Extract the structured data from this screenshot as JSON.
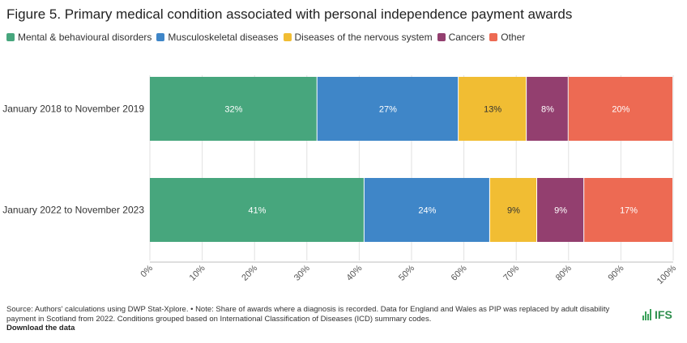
{
  "title": "Figure 5. Primary medical condition associated with personal independence payment awards",
  "legend": [
    {
      "label": "Mental & behavioural disorders",
      "color": "#47a67d"
    },
    {
      "label": "Musculoskeletal diseases",
      "color": "#3f86c8"
    },
    {
      "label": "Diseases of the nervous system",
      "color": "#f1bd33"
    },
    {
      "label": "Cancers",
      "color": "#933f6f"
    },
    {
      "label": "Other",
      "color": "#ed6a53"
    }
  ],
  "chart_data": {
    "type": "bar",
    "orientation": "horizontal",
    "stacked": true,
    "categories": [
      "January 2018 to November 2019",
      "January 2022 to November 2023"
    ],
    "series": [
      {
        "name": "Mental & behavioural disorders",
        "values": [
          32,
          41
        ],
        "labels": [
          "32%",
          "41%"
        ],
        "color": "#47a67d"
      },
      {
        "name": "Musculoskeletal diseases",
        "values": [
          27,
          24
        ],
        "labels": [
          "27%",
          "24%"
        ],
        "color": "#3f86c8"
      },
      {
        "name": "Diseases of the nervous system",
        "values": [
          13,
          9
        ],
        "labels": [
          "13%",
          "9%"
        ],
        "color": "#f1bd33"
      },
      {
        "name": "Cancers",
        "values": [
          8,
          9
        ],
        "labels": [
          "8%",
          "9%"
        ],
        "color": "#933f6f"
      },
      {
        "name": "Other",
        "values": [
          20,
          17
        ],
        "labels": [
          "20%",
          "17%"
        ],
        "color": "#ed6a53"
      }
    ],
    "xlim": [
      0,
      100
    ],
    "xticks": [
      "0%",
      "10%",
      "20%",
      "30%",
      "40%",
      "50%",
      "60%",
      "70%",
      "80%",
      "90%",
      "100%"
    ],
    "legend_position": "top-left",
    "grid": true
  },
  "footer": {
    "source": "Source: Authors' calculations using DWP Stat-Xplore. • Note: Share of awards where a diagnosis is recorded. Data for England and Wales as PIP was replaced by adult disability payment in Scotland from 2022. Conditions grouped based on International Classification of Diseases (ICD) summary codes.",
    "download": "Download the data"
  },
  "logo": {
    "text": "IFS",
    "color": "#2f8f4e"
  }
}
